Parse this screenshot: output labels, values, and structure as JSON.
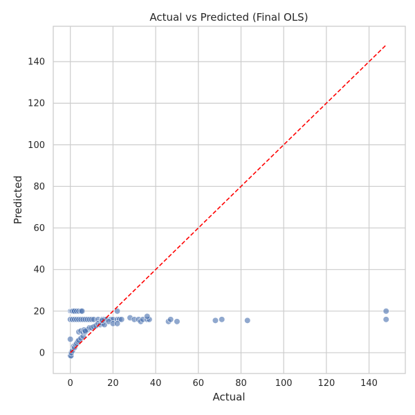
{
  "chart_data": {
    "type": "scatter",
    "title": "Actual vs Predicted (Final OLS)",
    "xlabel": "Actual",
    "ylabel": "Predicted",
    "xlim": [
      -8,
      157
    ],
    "ylim": [
      -10,
      157
    ],
    "xticks": [
      0,
      20,
      40,
      60,
      80,
      100,
      120,
      140
    ],
    "yticks": [
      0,
      20,
      40,
      60,
      80,
      100,
      120,
      140
    ],
    "grid": true,
    "colors": {
      "points": "#4c72b0",
      "reference_line": "#ff0000"
    },
    "reference_line": {
      "style": "dashed",
      "from": [
        0,
        0
      ],
      "to": [
        148,
        148
      ]
    },
    "points": [
      [
        0,
        20
      ],
      [
        0.3,
        20
      ],
      [
        0.7,
        20
      ],
      [
        1,
        20
      ],
      [
        1.5,
        20
      ],
      [
        2,
        20
      ],
      [
        3,
        20
      ],
      [
        4,
        20
      ],
      [
        5,
        20
      ],
      [
        5.5,
        20
      ],
      [
        0,
        16
      ],
      [
        1,
        16
      ],
      [
        2,
        16
      ],
      [
        3,
        16
      ],
      [
        4,
        16
      ],
      [
        5,
        16
      ],
      [
        6,
        16
      ],
      [
        7,
        16
      ],
      [
        8,
        16
      ],
      [
        9,
        16
      ],
      [
        10,
        16
      ],
      [
        11,
        16
      ],
      [
        13,
        16
      ],
      [
        15,
        16
      ],
      [
        16,
        16
      ],
      [
        17,
        16
      ],
      [
        19,
        16
      ],
      [
        20,
        16
      ],
      [
        22,
        16
      ],
      [
        23,
        16
      ],
      [
        24,
        16
      ],
      [
        28,
        16.8
      ],
      [
        30,
        16
      ],
      [
        32,
        16
      ],
      [
        33,
        15
      ],
      [
        34,
        16
      ],
      [
        36,
        16
      ],
      [
        37,
        16
      ],
      [
        36,
        17.5
      ],
      [
        46,
        15
      ],
      [
        47,
        16
      ],
      [
        50,
        15
      ],
      [
        68,
        15.5
      ],
      [
        71,
        16
      ],
      [
        83,
        15.5
      ],
      [
        148,
        20
      ],
      [
        148,
        16
      ],
      [
        0,
        6.5
      ],
      [
        0,
        -1.5
      ],
      [
        0.3,
        -1.5
      ],
      [
        0.5,
        0
      ],
      [
        1,
        1
      ],
      [
        1.5,
        3
      ],
      [
        2,
        2.5
      ],
      [
        2.5,
        4
      ],
      [
        3,
        4.5
      ],
      [
        3.5,
        5.5
      ],
      [
        4,
        6
      ],
      [
        4,
        10
      ],
      [
        5,
        7
      ],
      [
        5,
        10.5
      ],
      [
        6,
        8
      ],
      [
        6,
        10
      ],
      [
        6.5,
        11
      ],
      [
        7,
        10
      ],
      [
        8,
        11
      ],
      [
        9,
        12
      ],
      [
        10,
        12
      ],
      [
        11,
        12.5
      ],
      [
        12,
        13
      ],
      [
        13,
        14
      ],
      [
        14,
        13.5
      ],
      [
        15,
        14
      ],
      [
        16,
        13.5
      ],
      [
        18,
        15
      ],
      [
        20,
        14
      ],
      [
        22,
        14
      ],
      [
        22,
        20
      ],
      [
        15,
        15.5
      ],
      [
        7,
        10.5
      ]
    ]
  }
}
